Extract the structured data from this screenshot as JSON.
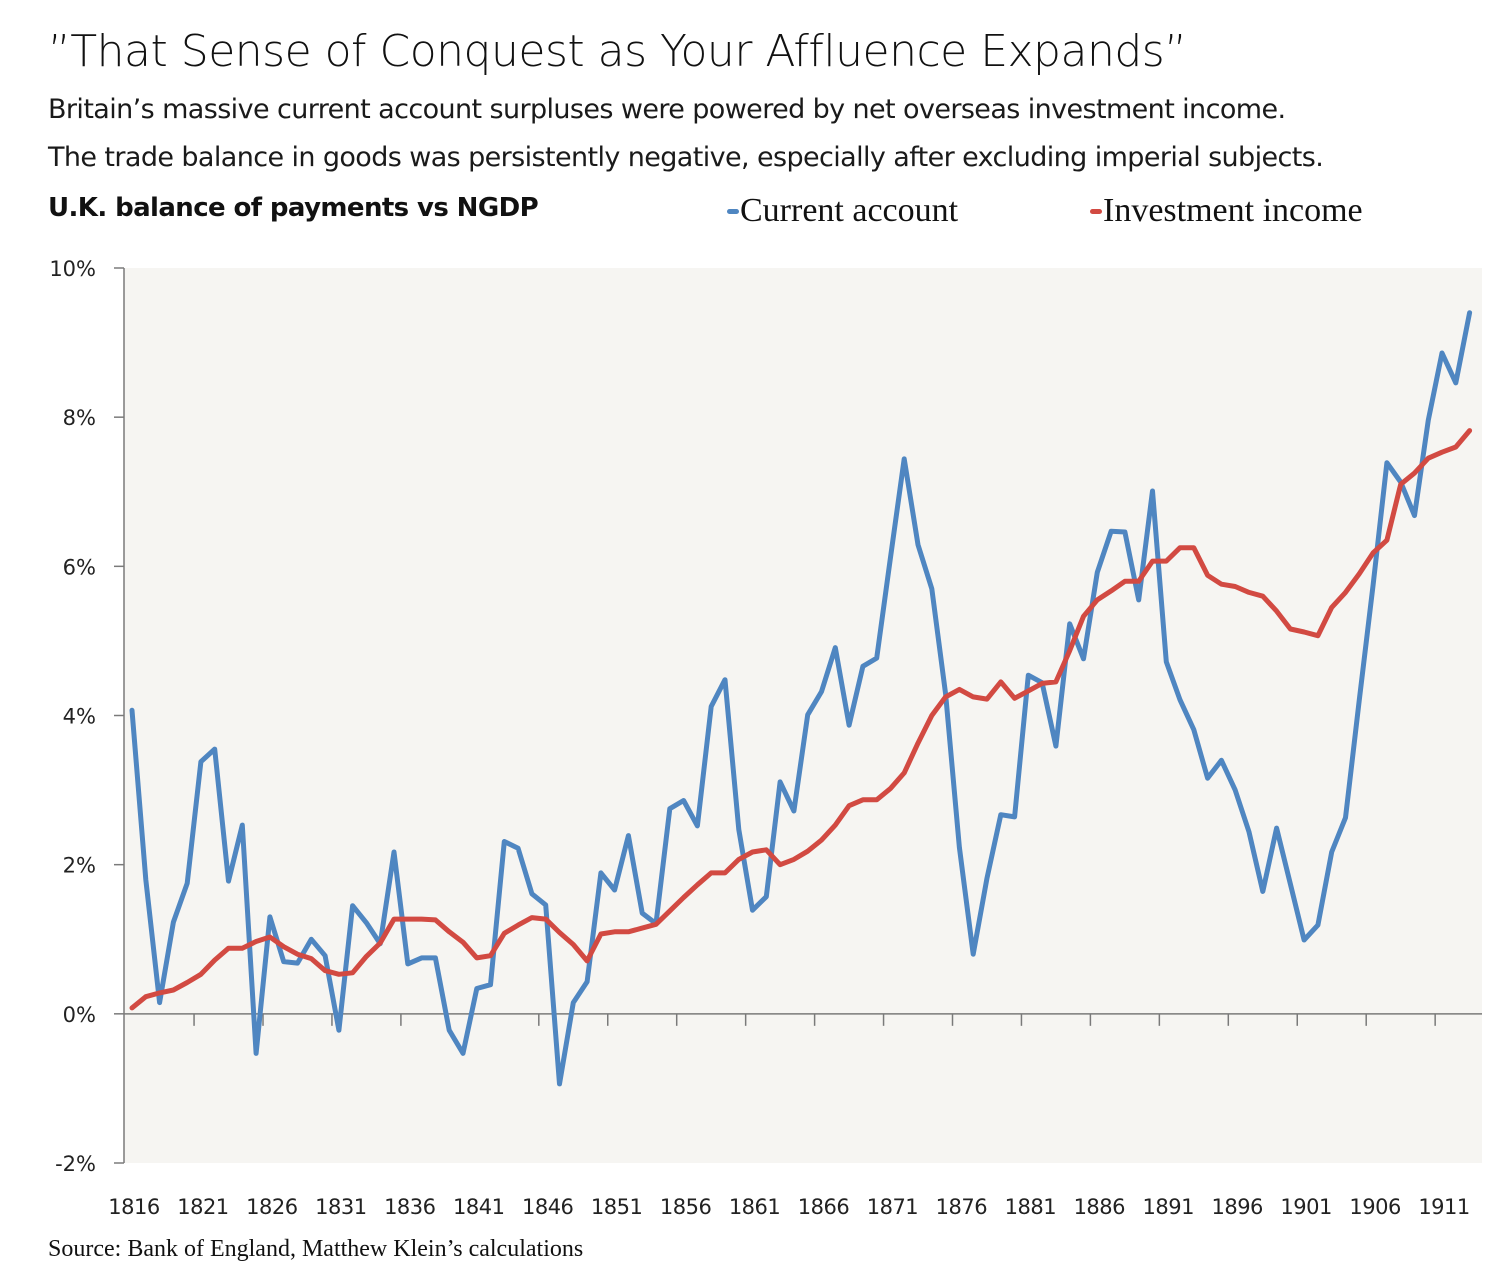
{
  "header": {
    "title": "”That Sense of Conquest as Your Affluence Expands”",
    "subtitle_lines": [
      "Britain’s massive current account surpluses were powered by net overseas investment income.",
      "The trade balance in goods was persistently negative, especially after excluding imperial subjects."
    ],
    "chart_label": "U.K. balance of payments vs NGDP"
  },
  "footer": {
    "source": "Source: Bank of England, Matthew Klein’s calculations"
  },
  "colors": {
    "current_account": "#4F86C1",
    "investment_income": "#D24A42",
    "plot_background": "#F6F5F2",
    "axis": "#7a7a7a"
  },
  "chart_data": {
    "type": "line",
    "title": "U.K. balance of payments vs NGDP",
    "xlabel": "",
    "ylabel": "",
    "ylim": [
      -2,
      10
    ],
    "yticks": [
      -2,
      0,
      2,
      4,
      6,
      8,
      10
    ],
    "ytick_labels": [
      "-2%",
      "0%",
      "2%",
      "4%",
      "6%",
      "8%",
      "10%"
    ],
    "xlim": [
      1816,
      1913
    ],
    "xtick_labels": [
      "1816",
      "1821",
      "1826",
      "1831",
      "1836",
      "1841",
      "1846",
      "1851",
      "1856",
      "1861",
      "1866",
      "1871",
      "1876",
      "1881",
      "1886",
      "1891",
      "1896",
      "1901",
      "1906",
      "1911"
    ],
    "grid": false,
    "legend_position": "top",
    "x": [
      1816,
      1817,
      1818,
      1819,
      1820,
      1821,
      1822,
      1823,
      1824,
      1825,
      1826,
      1827,
      1828,
      1829,
      1830,
      1831,
      1832,
      1833,
      1834,
      1835,
      1836,
      1837,
      1838,
      1839,
      1840,
      1841,
      1842,
      1843,
      1844,
      1845,
      1846,
      1847,
      1848,
      1849,
      1850,
      1851,
      1852,
      1853,
      1854,
      1855,
      1856,
      1857,
      1858,
      1859,
      1860,
      1861,
      1862,
      1863,
      1864,
      1865,
      1866,
      1867,
      1868,
      1869,
      1870,
      1871,
      1872,
      1873,
      1874,
      1875,
      1876,
      1877,
      1878,
      1879,
      1880,
      1881,
      1882,
      1883,
      1884,
      1885,
      1886,
      1887,
      1888,
      1889,
      1890,
      1891,
      1892,
      1893,
      1894,
      1895,
      1896,
      1897,
      1898,
      1899,
      1900,
      1901,
      1902,
      1903,
      1904,
      1905,
      1906,
      1907,
      1908,
      1909,
      1910,
      1911,
      1912,
      1913
    ],
    "series": [
      {
        "name": "Current account",
        "color": "#4F86C1",
        "values": [
          4.07,
          1.8,
          0.15,
          1.23,
          1.75,
          3.38,
          3.55,
          1.78,
          2.53,
          -0.53,
          1.3,
          0.7,
          0.68,
          1.0,
          0.78,
          -0.22,
          1.45,
          1.22,
          0.94,
          2.17,
          0.67,
          0.75,
          0.75,
          -0.22,
          -0.53,
          0.34,
          0.39,
          2.31,
          2.22,
          1.61,
          1.46,
          -0.94,
          0.15,
          0.43,
          1.89,
          1.66,
          2.39,
          1.35,
          1.21,
          2.75,
          2.86,
          2.52,
          4.12,
          4.48,
          2.47,
          1.39,
          1.57,
          3.11,
          2.72,
          4.01,
          4.32,
          4.91,
          3.87,
          4.66,
          4.77,
          6.11,
          7.44,
          6.29,
          5.7,
          4.29,
          2.23,
          0.8,
          1.82,
          2.67,
          2.64,
          4.54,
          4.44,
          3.59,
          5.23,
          4.76,
          5.92,
          6.47,
          6.46,
          5.55,
          7.01,
          4.72,
          4.21,
          3.81,
          3.16,
          3.4,
          3.0,
          2.44,
          1.64,
          2.49,
          1.74,
          0.99,
          1.19,
          2.17,
          2.63,
          4.21,
          5.75,
          7.39,
          7.13,
          6.68,
          7.96,
          8.86,
          8.46,
          9.4
        ]
      },
      {
        "name": "Investment income",
        "color": "#D24A42",
        "values": [
          0.08,
          0.23,
          0.28,
          0.32,
          0.42,
          0.53,
          0.72,
          0.88,
          0.88,
          0.97,
          1.03,
          0.9,
          0.8,
          0.74,
          0.58,
          0.53,
          0.55,
          0.77,
          0.95,
          1.27,
          1.27,
          1.27,
          1.26,
          1.1,
          0.96,
          0.75,
          0.78,
          1.08,
          1.19,
          1.29,
          1.27,
          1.09,
          0.93,
          0.71,
          1.07,
          1.1,
          1.1,
          1.15,
          1.2,
          1.38,
          1.56,
          1.73,
          1.89,
          1.89,
          2.07,
          2.17,
          2.2,
          2.0,
          2.07,
          2.18,
          2.33,
          2.53,
          2.79,
          2.87,
          2.87,
          3.02,
          3.23,
          3.63,
          4.0,
          4.25,
          4.35,
          4.25,
          4.22,
          4.45,
          4.23,
          4.33,
          4.43,
          4.45,
          4.87,
          5.33,
          5.55,
          5.67,
          5.8,
          5.8,
          6.07,
          6.07,
          6.25,
          6.25,
          5.88,
          5.76,
          5.73,
          5.65,
          5.6,
          5.4,
          5.16,
          5.12,
          5.07,
          5.45,
          5.65,
          5.9,
          6.18,
          6.35,
          7.1,
          7.25,
          7.45,
          7.53,
          7.6,
          7.82
        ]
      }
    ]
  }
}
